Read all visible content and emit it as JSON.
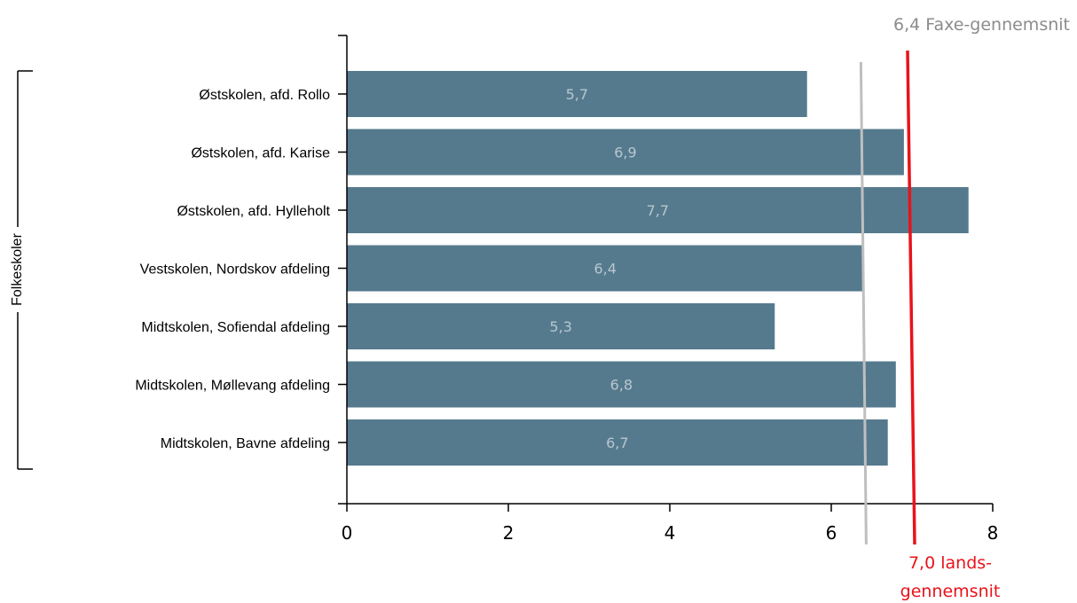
{
  "chart_data": {
    "type": "bar",
    "orientation": "horizontal",
    "group_label": "Folkeskoler",
    "categories": [
      "Østskolen, afd. Rollo",
      "Østskolen, afd. Karise",
      "Østskolen, afd. Hylleholt",
      "Vestskolen, Nordskov afdeling",
      "Midtskolen, Sofiendal afdeling",
      "Midtskolen, Møllevang afdeling",
      "Midtskolen, Bavne afdeling"
    ],
    "values": [
      5.7,
      6.9,
      7.7,
      6.4,
      5.3,
      6.8,
      6.7
    ],
    "value_labels": [
      "5,7",
      "6,9",
      "7,7",
      "6,4",
      "5,3",
      "6,8",
      "6,7"
    ],
    "xlim": [
      0,
      8
    ],
    "xticks": [
      0,
      2,
      4,
      6,
      8
    ],
    "xtick_labels": [
      "0",
      "2",
      "4",
      "6",
      "8"
    ],
    "grid": false,
    "reference_lines": [
      {
        "value": 6.4,
        "label": "6,4 Faxe-gennemsnit",
        "color": "#bfbfbf"
      },
      {
        "value": 7.0,
        "label_lines": [
          "7,0 lands-",
          "gennemsnit"
        ],
        "color": "#e8131b"
      }
    ],
    "colors": {
      "bar": "#557a8d",
      "bar_label": "#b8c6d0",
      "axis": "#000000"
    }
  }
}
